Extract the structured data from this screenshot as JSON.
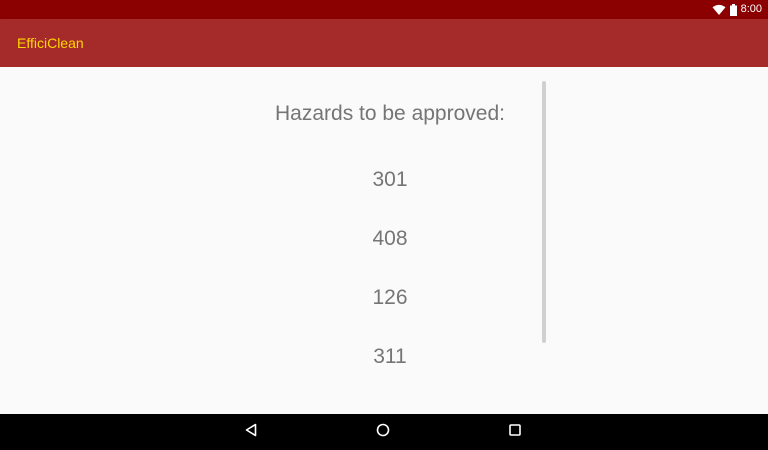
{
  "status_bar": {
    "time": "8:00",
    "icons": [
      "wifi-icon",
      "battery-icon"
    ],
    "background": "#8b0000"
  },
  "app_bar": {
    "title": "EfficiClean",
    "background": "#a52a2a",
    "title_color": "#ffd700"
  },
  "main": {
    "heading": "Hazards to be approved:",
    "items": [
      "301",
      "408",
      "126",
      "311"
    ]
  },
  "nav_bar": {
    "buttons": [
      "back-icon",
      "home-icon",
      "recents-icon"
    ]
  }
}
